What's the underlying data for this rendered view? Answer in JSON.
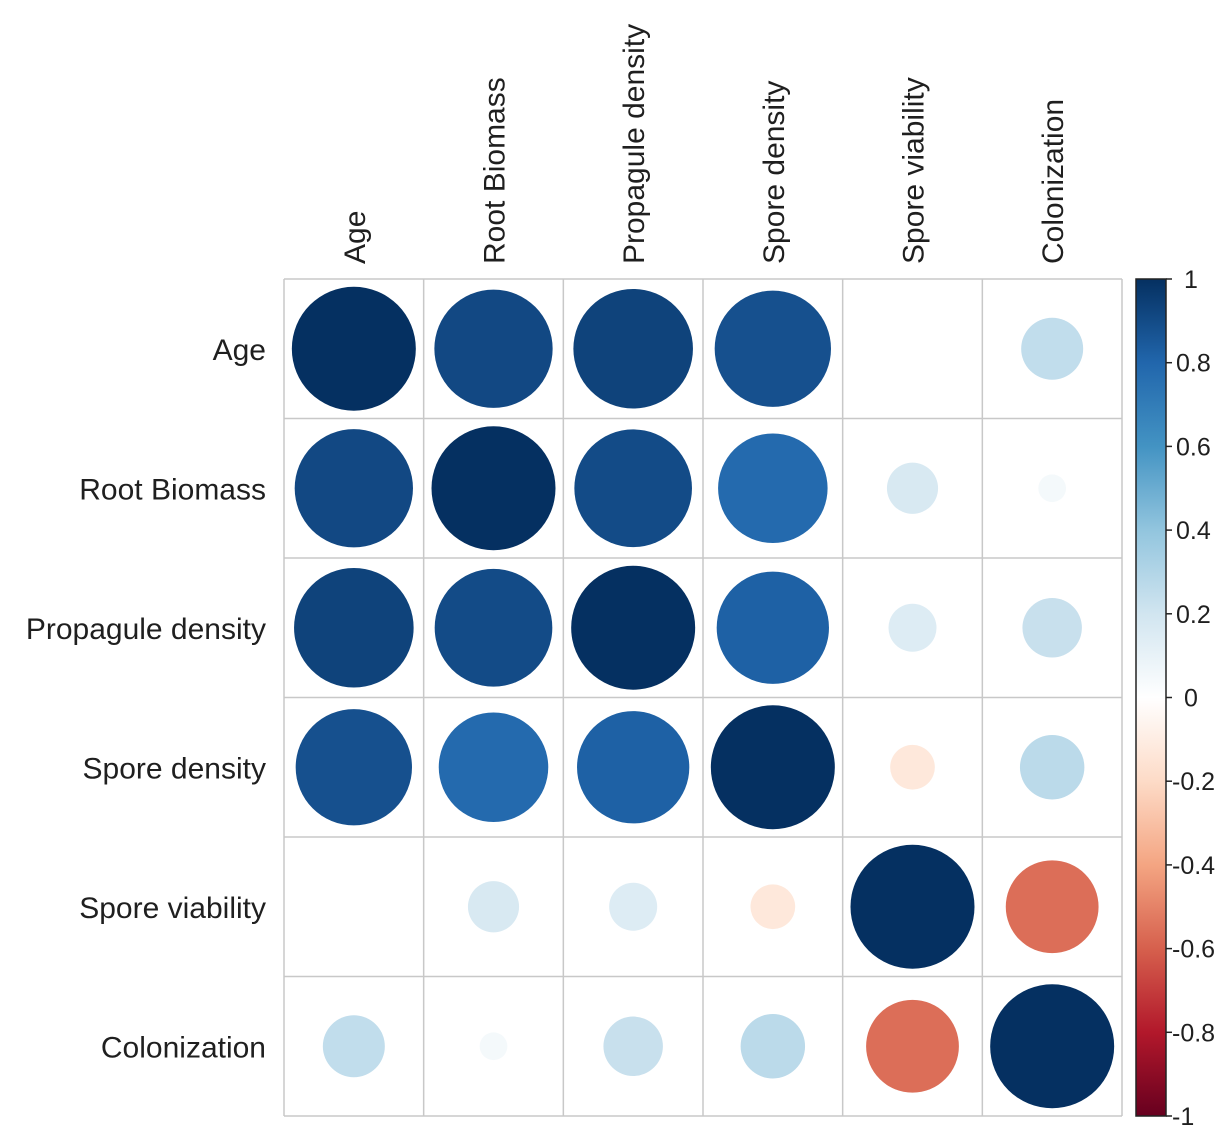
{
  "chart_data": {
    "type": "heatmap",
    "style": "corrplot-circle",
    "title": "",
    "variables": [
      "Age",
      "Root Biomass",
      "Propagule density",
      "Spore density",
      "Spore viability",
      "Colonization"
    ],
    "row_labels": [
      "Age",
      "Root Biomass",
      "Propagule density",
      "Spore density",
      "Spore viability",
      "Colonization"
    ],
    "col_labels": [
      "Age",
      "Root Biomass",
      "Propagule density",
      "Spore density",
      "Spore viability",
      "Colonization"
    ],
    "matrix": [
      [
        1.0,
        0.91,
        0.93,
        0.88,
        0.0,
        0.25
      ],
      [
        0.91,
        1.0,
        0.9,
        0.78,
        0.17,
        0.05
      ],
      [
        0.93,
        0.9,
        1.0,
        0.82,
        0.15,
        0.23
      ],
      [
        0.88,
        0.78,
        0.82,
        1.0,
        -0.13,
        0.27
      ],
      [
        0.0,
        0.17,
        0.15,
        -0.13,
        1.0,
        -0.56
      ],
      [
        0.25,
        0.05,
        0.23,
        0.27,
        -0.56,
        1.0
      ]
    ],
    "colorbar": {
      "range": [
        -1,
        1
      ],
      "ticks": [
        1,
        0.8,
        0.6,
        0.4,
        0.2,
        0,
        -0.2,
        -0.4,
        -0.6,
        -0.8,
        -1
      ],
      "tick_labels": [
        "1",
        "0.8",
        "0.6",
        "0.4",
        "0.2",
        "0",
        "-0.2",
        "-0.4",
        "-0.6",
        "-0.8",
        "-1"
      ],
      "placement": "right",
      "palette": [
        "#67001F",
        "#B2182B",
        "#D6604D",
        "#F4A582",
        "#FDDBC7",
        "#FFFFFF",
        "#D1E5F0",
        "#92C5DE",
        "#4393C3",
        "#2166AC",
        "#053061"
      ]
    },
    "grid": true,
    "grid_color": "#c8c8c8"
  }
}
